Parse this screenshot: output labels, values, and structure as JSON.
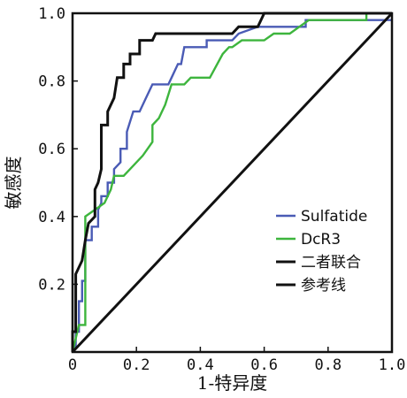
{
  "chart_data": {
    "type": "line",
    "title": "",
    "xlabel": "1-特异度",
    "ylabel": "敏感度",
    "xlim": [
      0,
      1.0
    ],
    "ylim": [
      0,
      1.0
    ],
    "xticks": [
      "0",
      "0.2",
      "0.4",
      "0.6",
      "0.8",
      "1.0"
    ],
    "yticks": [
      "0.2",
      "0.4",
      "0.6",
      "0.8",
      "1.0"
    ],
    "grid": false,
    "legend_position": "bottom-right",
    "series": [
      {
        "name": "Sulfatide",
        "color": "#4a5bb5",
        "points": [
          [
            0,
            0
          ],
          [
            0.01,
            0.02
          ],
          [
            0.01,
            0.06
          ],
          [
            0.02,
            0.06
          ],
          [
            0.02,
            0.15
          ],
          [
            0.03,
            0.15
          ],
          [
            0.03,
            0.21
          ],
          [
            0.04,
            0.21
          ],
          [
            0.04,
            0.33
          ],
          [
            0.06,
            0.33
          ],
          [
            0.06,
            0.37
          ],
          [
            0.08,
            0.37
          ],
          [
            0.08,
            0.42
          ],
          [
            0.09,
            0.44
          ],
          [
            0.09,
            0.46
          ],
          [
            0.11,
            0.46
          ],
          [
            0.11,
            0.5
          ],
          [
            0.13,
            0.5
          ],
          [
            0.13,
            0.54
          ],
          [
            0.15,
            0.56
          ],
          [
            0.15,
            0.6
          ],
          [
            0.17,
            0.6
          ],
          [
            0.17,
            0.65
          ],
          [
            0.19,
            0.71
          ],
          [
            0.21,
            0.71
          ],
          [
            0.23,
            0.75
          ],
          [
            0.25,
            0.79
          ],
          [
            0.28,
            0.79
          ],
          [
            0.3,
            0.79
          ],
          [
            0.31,
            0.81
          ],
          [
            0.33,
            0.85
          ],
          [
            0.34,
            0.85
          ],
          [
            0.35,
            0.9
          ],
          [
            0.38,
            0.9
          ],
          [
            0.42,
            0.9
          ],
          [
            0.42,
            0.92
          ],
          [
            0.5,
            0.92
          ],
          [
            0.52,
            0.94
          ],
          [
            0.58,
            0.96
          ],
          [
            0.73,
            0.96
          ],
          [
            0.73,
            0.98
          ],
          [
            1.0,
            0.98
          ]
        ]
      },
      {
        "name": "DcR3",
        "color": "#3db53d",
        "points": [
          [
            0,
            0
          ],
          [
            0.02,
            0.08
          ],
          [
            0.04,
            0.08
          ],
          [
            0.04,
            0.21
          ],
          [
            0.04,
            0.4
          ],
          [
            0.07,
            0.42
          ],
          [
            0.1,
            0.44
          ],
          [
            0.12,
            0.48
          ],
          [
            0.13,
            0.52
          ],
          [
            0.16,
            0.52
          ],
          [
            0.18,
            0.54
          ],
          [
            0.22,
            0.58
          ],
          [
            0.25,
            0.62
          ],
          [
            0.25,
            0.67
          ],
          [
            0.27,
            0.69
          ],
          [
            0.29,
            0.73
          ],
          [
            0.31,
            0.79
          ],
          [
            0.35,
            0.79
          ],
          [
            0.37,
            0.81
          ],
          [
            0.43,
            0.81
          ],
          [
            0.47,
            0.88
          ],
          [
            0.49,
            0.9
          ],
          [
            0.5,
            0.9
          ],
          [
            0.53,
            0.92
          ],
          [
            0.6,
            0.92
          ],
          [
            0.63,
            0.94
          ],
          [
            0.68,
            0.94
          ],
          [
            0.71,
            0.96
          ],
          [
            0.74,
            0.98
          ],
          [
            0.92,
            0.98
          ],
          [
            0.92,
            1.0
          ],
          [
            1.0,
            1.0
          ]
        ]
      },
      {
        "name": "二者联合",
        "color": "#111111",
        "points": [
          [
            0,
            0
          ],
          [
            0,
            0.06
          ],
          [
            0.01,
            0.06
          ],
          [
            0.01,
            0.23
          ],
          [
            0.03,
            0.27
          ],
          [
            0.04,
            0.33
          ],
          [
            0.05,
            0.38
          ],
          [
            0.07,
            0.4
          ],
          [
            0.07,
            0.48
          ],
          [
            0.08,
            0.5
          ],
          [
            0.09,
            0.54
          ],
          [
            0.09,
            0.67
          ],
          [
            0.11,
            0.67
          ],
          [
            0.11,
            0.71
          ],
          [
            0.13,
            0.75
          ],
          [
            0.14,
            0.81
          ],
          [
            0.16,
            0.81
          ],
          [
            0.16,
            0.85
          ],
          [
            0.18,
            0.85
          ],
          [
            0.18,
            0.88
          ],
          [
            0.21,
            0.88
          ],
          [
            0.21,
            0.92
          ],
          [
            0.25,
            0.92
          ],
          [
            0.26,
            0.94
          ],
          [
            0.5,
            0.94
          ],
          [
            0.52,
            0.96
          ],
          [
            0.58,
            0.96
          ],
          [
            0.6,
            1.0
          ],
          [
            1.0,
            1.0
          ]
        ]
      },
      {
        "name": "参考线",
        "color": "#111111",
        "points": [
          [
            0,
            0
          ],
          [
            1.0,
            1.0
          ]
        ]
      }
    ]
  }
}
